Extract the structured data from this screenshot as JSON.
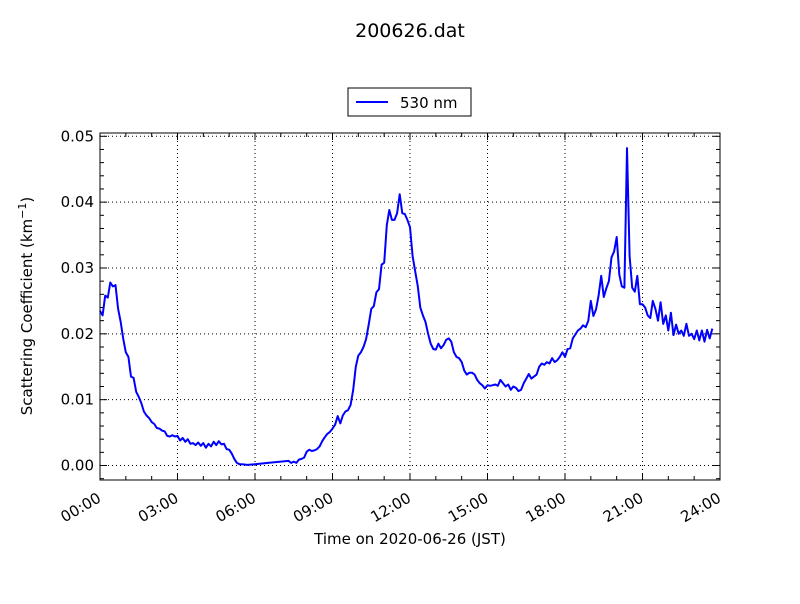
{
  "chart_data": {
    "type": "line",
    "title": "200626.dat",
    "xlabel": "Time on 2020-06-26 (JST)",
    "ylabel": "Scattering Coefficient (km",
    "ylabel_sup": "−1",
    "ylabel_end": ")",
    "xlim": [
      "00:00",
      "24:00"
    ],
    "ylim": [
      -0.0022,
      0.0505
    ],
    "x_ticks": [
      "00:00",
      "03:00",
      "06:00",
      "09:00",
      "12:00",
      "15:00",
      "18:00",
      "21:00",
      "24:00"
    ],
    "y_ticks": [
      "0.00",
      "0.01",
      "0.02",
      "0.03",
      "0.04",
      "0.05"
    ],
    "grid": true,
    "legend_position": "top-center",
    "series": [
      {
        "name": "530 nm",
        "color": "#0000ff",
        "points": [
          [
            "00:00",
            0.0235
          ],
          [
            "00:06",
            0.0228
          ],
          [
            "00:12",
            0.0258
          ],
          [
            "00:18",
            0.0255
          ],
          [
            "00:24",
            0.0278
          ],
          [
            "00:30",
            0.0272
          ],
          [
            "00:36",
            0.0274
          ],
          [
            "00:42",
            0.0238
          ],
          [
            "00:48",
            0.0218
          ],
          [
            "00:54",
            0.0192
          ],
          [
            "01:00",
            0.0172
          ],
          [
            "01:06",
            0.0165
          ],
          [
            "01:12",
            0.0135
          ],
          [
            "01:18",
            0.0133
          ],
          [
            "01:24",
            0.0112
          ],
          [
            "01:30",
            0.0104
          ],
          [
            "01:36",
            0.0095
          ],
          [
            "01:42",
            0.0082
          ],
          [
            "01:48",
            0.0076
          ],
          [
            "01:54",
            0.0072
          ],
          [
            "02:00",
            0.0066
          ],
          [
            "02:06",
            0.0063
          ],
          [
            "02:12",
            0.0057
          ],
          [
            "02:18",
            0.0056
          ],
          [
            "02:24",
            0.0053
          ],
          [
            "02:30",
            0.0052
          ],
          [
            "02:36",
            0.0045
          ],
          [
            "02:42",
            0.0044
          ],
          [
            "02:48",
            0.0046
          ],
          [
            "02:54",
            0.0044
          ],
          [
            "03:00",
            0.0045
          ],
          [
            "03:06",
            0.0038
          ],
          [
            "03:12",
            0.0042
          ],
          [
            "03:18",
            0.0036
          ],
          [
            "03:24",
            0.004
          ],
          [
            "03:30",
            0.0033
          ],
          [
            "03:36",
            0.0034
          ],
          [
            "03:42",
            0.0031
          ],
          [
            "03:48",
            0.0035
          ],
          [
            "03:54",
            0.003
          ],
          [
            "04:00",
            0.0034
          ],
          [
            "04:06",
            0.0027
          ],
          [
            "04:12",
            0.0033
          ],
          [
            "04:18",
            0.0029
          ],
          [
            "04:24",
            0.0036
          ],
          [
            "04:30",
            0.0031
          ],
          [
            "04:36",
            0.0037
          ],
          [
            "04:42",
            0.0032
          ],
          [
            "04:48",
            0.0033
          ],
          [
            "04:54",
            0.0025
          ],
          [
            "05:00",
            0.0024
          ],
          [
            "05:06",
            0.0018
          ],
          [
            "05:12",
            0.001
          ],
          [
            "05:18",
            0.0004
          ],
          [
            "05:24",
            0.0002
          ],
          [
            "05:30",
            0.0002
          ],
          [
            "05:42",
            0.0001
          ],
          [
            "06:00",
            0.0002
          ],
          [
            "06:30",
            0.0004
          ],
          [
            "07:00",
            0.0006
          ],
          [
            "07:18",
            0.0007
          ],
          [
            "07:24",
            0.0004
          ],
          [
            "07:30",
            0.0006
          ],
          [
            "07:36",
            0.0004
          ],
          [
            "07:42",
            0.0009
          ],
          [
            "07:48",
            0.001
          ],
          [
            "07:54",
            0.0012
          ],
          [
            "08:00",
            0.0021
          ],
          [
            "08:06",
            0.0024
          ],
          [
            "08:12",
            0.0022
          ],
          [
            "08:18",
            0.0023
          ],
          [
            "08:24",
            0.0025
          ],
          [
            "08:30",
            0.0029
          ],
          [
            "08:36",
            0.0037
          ],
          [
            "08:42",
            0.0043
          ],
          [
            "08:48",
            0.0048
          ],
          [
            "08:54",
            0.0051
          ],
          [
            "09:00",
            0.0056
          ],
          [
            "09:06",
            0.0062
          ],
          [
            "09:12",
            0.0075
          ],
          [
            "09:18",
            0.0064
          ],
          [
            "09:24",
            0.0076
          ],
          [
            "09:30",
            0.0082
          ],
          [
            "09:36",
            0.0084
          ],
          [
            "09:42",
            0.0092
          ],
          [
            "09:48",
            0.0115
          ],
          [
            "09:54",
            0.015
          ],
          [
            "10:00",
            0.0167
          ],
          [
            "10:06",
            0.0172
          ],
          [
            "10:12",
            0.018
          ],
          [
            "10:18",
            0.0192
          ],
          [
            "10:24",
            0.0214
          ],
          [
            "10:30",
            0.0238
          ],
          [
            "10:36",
            0.0242
          ],
          [
            "10:42",
            0.0263
          ],
          [
            "10:48",
            0.0268
          ],
          [
            "10:54",
            0.0305
          ],
          [
            "11:00",
            0.0308
          ],
          [
            "11:06",
            0.0365
          ],
          [
            "11:12",
            0.0388
          ],
          [
            "11:18",
            0.0373
          ],
          [
            "11:24",
            0.0373
          ],
          [
            "11:30",
            0.0383
          ],
          [
            "11:36",
            0.0412
          ],
          [
            "11:42",
            0.0383
          ],
          [
            "11:48",
            0.0382
          ],
          [
            "11:54",
            0.0373
          ],
          [
            "12:00",
            0.0362
          ],
          [
            "12:06",
            0.0318
          ],
          [
            "12:12",
            0.0295
          ],
          [
            "12:18",
            0.0272
          ],
          [
            "12:24",
            0.024
          ],
          [
            "12:30",
            0.0228
          ],
          [
            "12:36",
            0.0218
          ],
          [
            "12:42",
            0.02
          ],
          [
            "12:48",
            0.0185
          ],
          [
            "12:54",
            0.0177
          ],
          [
            "13:00",
            0.0176
          ],
          [
            "13:06",
            0.0185
          ],
          [
            "13:12",
            0.0178
          ],
          [
            "13:18",
            0.0183
          ],
          [
            "13:24",
            0.0191
          ],
          [
            "13:30",
            0.0193
          ],
          [
            "13:36",
            0.0188
          ],
          [
            "13:42",
            0.0172
          ],
          [
            "13:48",
            0.0165
          ],
          [
            "13:54",
            0.0163
          ],
          [
            "14:00",
            0.0157
          ],
          [
            "14:06",
            0.0144
          ],
          [
            "14:12",
            0.0138
          ],
          [
            "14:18",
            0.0141
          ],
          [
            "14:24",
            0.0141
          ],
          [
            "14:30",
            0.0138
          ],
          [
            "14:36",
            0.013
          ],
          [
            "14:42",
            0.0125
          ],
          [
            "14:48",
            0.0122
          ],
          [
            "14:54",
            0.0117
          ],
          [
            "15:00",
            0.0122
          ],
          [
            "15:06",
            0.0121
          ],
          [
            "15:12",
            0.0122
          ],
          [
            "15:18",
            0.0123
          ],
          [
            "15:24",
            0.0121
          ],
          [
            "15:30",
            0.013
          ],
          [
            "15:36",
            0.0125
          ],
          [
            "15:42",
            0.012
          ],
          [
            "15:48",
            0.0123
          ],
          [
            "15:54",
            0.0115
          ],
          [
            "16:00",
            0.012
          ],
          [
            "16:06",
            0.0118
          ],
          [
            "16:12",
            0.0113
          ],
          [
            "16:18",
            0.0115
          ],
          [
            "16:24",
            0.0125
          ],
          [
            "16:30",
            0.0132
          ],
          [
            "16:36",
            0.0139
          ],
          [
            "16:42",
            0.0132
          ],
          [
            "16:48",
            0.0135
          ],
          [
            "16:54",
            0.0138
          ],
          [
            "17:00",
            0.015
          ],
          [
            "17:06",
            0.0155
          ],
          [
            "17:12",
            0.0153
          ],
          [
            "17:18",
            0.0157
          ],
          [
            "17:24",
            0.0155
          ],
          [
            "17:30",
            0.0163
          ],
          [
            "17:36",
            0.0157
          ],
          [
            "17:42",
            0.016
          ],
          [
            "17:48",
            0.0165
          ],
          [
            "17:54",
            0.0172
          ],
          [
            "18:00",
            0.0165
          ],
          [
            "18:06",
            0.0177
          ],
          [
            "18:12",
            0.0178
          ],
          [
            "18:18",
            0.0193
          ],
          [
            "18:24",
            0.0199
          ],
          [
            "18:30",
            0.0205
          ],
          [
            "18:36",
            0.0208
          ],
          [
            "18:42",
            0.0213
          ],
          [
            "18:48",
            0.021
          ],
          [
            "18:54",
            0.022
          ],
          [
            "19:00",
            0.025
          ],
          [
            "19:06",
            0.0227
          ],
          [
            "19:12",
            0.0237
          ],
          [
            "19:18",
            0.0258
          ],
          [
            "19:24",
            0.0288
          ],
          [
            "19:30",
            0.0256
          ],
          [
            "19:36",
            0.0269
          ],
          [
            "19:42",
            0.028
          ],
          [
            "19:48",
            0.0316
          ],
          [
            "19:54",
            0.0325
          ],
          [
            "20:00",
            0.0347
          ],
          [
            "20:06",
            0.029
          ],
          [
            "20:12",
            0.0272
          ],
          [
            "20:18",
            0.027
          ],
          [
            "20:24",
            0.0482
          ],
          [
            "20:30",
            0.0318
          ],
          [
            "20:36",
            0.027
          ],
          [
            "20:42",
            0.0264
          ],
          [
            "20:48",
            0.0288
          ],
          [
            "20:54",
            0.0245
          ],
          [
            "21:00",
            0.0245
          ],
          [
            "21:06",
            0.024
          ],
          [
            "21:12",
            0.0228
          ],
          [
            "21:18",
            0.0224
          ],
          [
            "21:24",
            0.025
          ],
          [
            "21:30",
            0.0238
          ],
          [
            "21:36",
            0.022
          ],
          [
            "21:42",
            0.0248
          ],
          [
            "21:48",
            0.0215
          ],
          [
            "21:54",
            0.0228
          ],
          [
            "22:00",
            0.0205
          ],
          [
            "22:06",
            0.0232
          ],
          [
            "22:12",
            0.0198
          ],
          [
            "22:18",
            0.0214
          ],
          [
            "22:24",
            0.02
          ],
          [
            "22:30",
            0.0205
          ],
          [
            "22:36",
            0.0197
          ],
          [
            "22:42",
            0.0215
          ],
          [
            "22:48",
            0.0197
          ],
          [
            "22:54",
            0.02
          ],
          [
            "23:00",
            0.0192
          ],
          [
            "23:06",
            0.0205
          ],
          [
            "23:12",
            0.019
          ],
          [
            "23:18",
            0.0205
          ],
          [
            "23:24",
            0.0188
          ],
          [
            "23:30",
            0.0206
          ],
          [
            "23:36",
            0.0193
          ],
          [
            "23:42",
            0.0208
          ]
        ]
      }
    ]
  }
}
